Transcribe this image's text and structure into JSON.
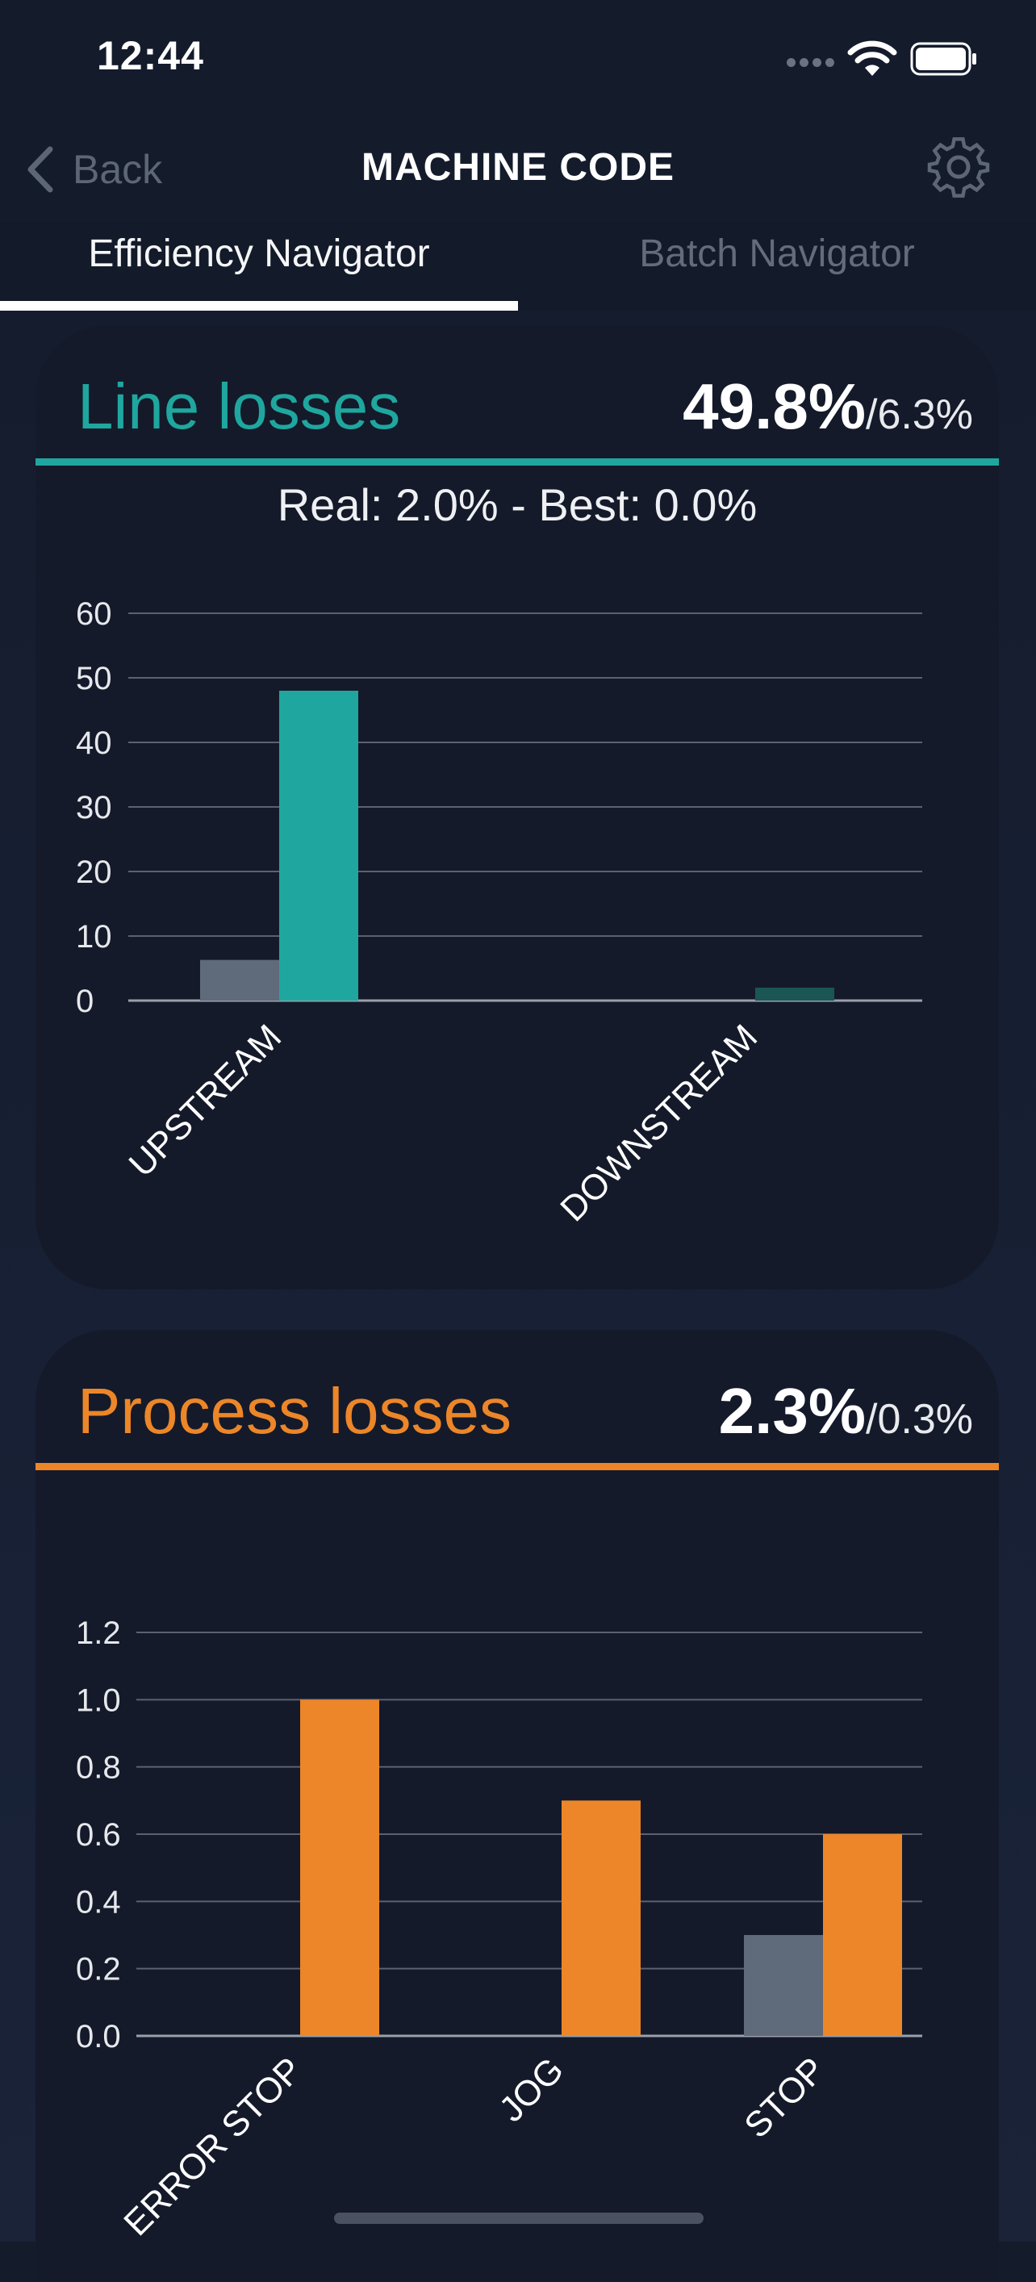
{
  "status_bar": {
    "time": "12:44"
  },
  "nav": {
    "back_label": "Back",
    "title": "MACHINE CODE"
  },
  "tabs": [
    {
      "label": "Efficiency Navigator",
      "active": true
    },
    {
      "label": "Batch Navigator",
      "active": false
    }
  ],
  "colors": {
    "teal": "#1fa79f",
    "orange": "#ec8628",
    "grey_bar": "#5f6a7a",
    "dark_teal": "#1a5654"
  },
  "line_losses": {
    "title": "Line losses",
    "value": "49.8%",
    "target": "/6.3%",
    "subtitle": "Real: 2.0% - Best: 0.0%"
  },
  "process_losses": {
    "title": "Process losses",
    "value": "2.3%",
    "target": "/0.3%"
  },
  "chart_data": [
    {
      "type": "bar",
      "categories": [
        "UPSTREAM",
        "DOWNSTREAM"
      ],
      "series": [
        {
          "values": [
            6.3,
            0
          ],
          "color": "#5f6a7a"
        },
        {
          "values": [
            48,
            2
          ],
          "color": "#1fa79f"
        }
      ],
      "yticks": [
        "60",
        "50",
        "40",
        "30",
        "20",
        "10",
        "0"
      ],
      "ylim": [
        0,
        60
      ],
      "grid": true
    },
    {
      "type": "bar",
      "categories": [
        "ERROR STOP",
        "JOG",
        "STOP"
      ],
      "series": [
        {
          "values": [
            0,
            0,
            0.3
          ],
          "color": "#5f6a7a"
        },
        {
          "values": [
            1.0,
            0.7,
            0.6
          ],
          "color": "#ec8628"
        }
      ],
      "yticks": [
        "1.2",
        "1.0",
        "0.8",
        "0.6",
        "0.4",
        "0.2",
        "0.0"
      ],
      "ylim": [
        0,
        1.2
      ],
      "grid": true
    }
  ]
}
